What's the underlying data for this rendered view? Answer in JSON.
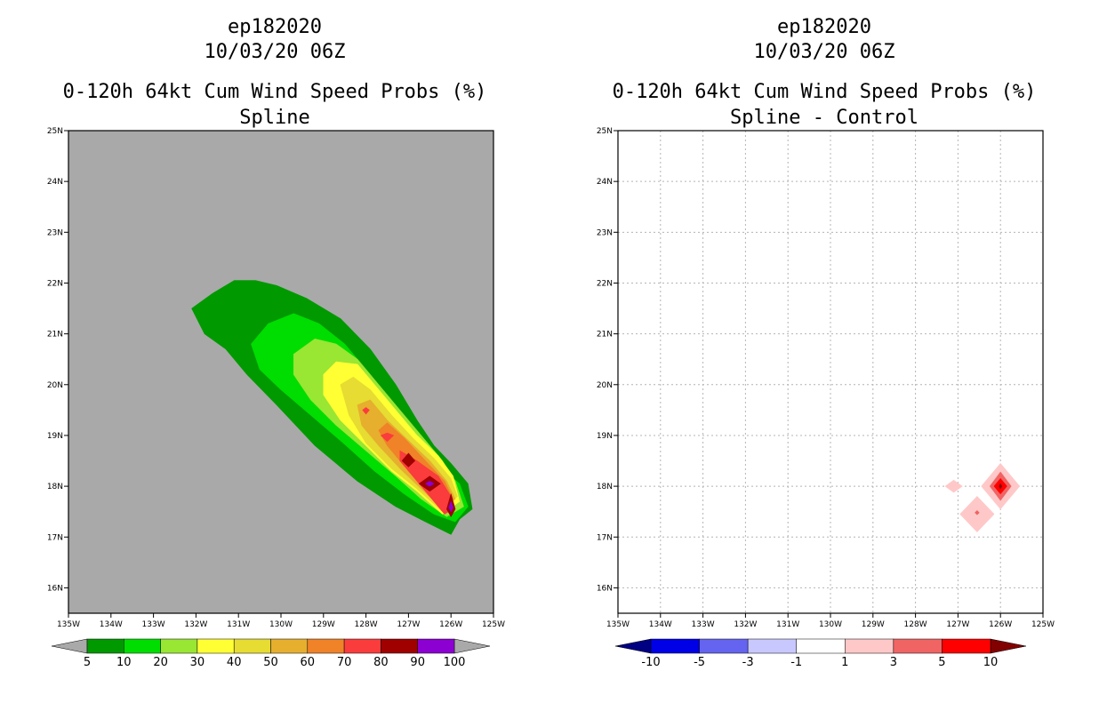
{
  "chart_data": [
    {
      "type": "heatmap",
      "id": "spline",
      "storm": "ep182020",
      "datetime": "10/03/20 06Z",
      "title": "0-120h 64kt Cum Wind Speed Probs (%)",
      "subtitle": "Spline",
      "xlim": [
        -135,
        -125
      ],
      "ylim": [
        15.5,
        25
      ],
      "xticks": [
        "135W",
        "134W",
        "133W",
        "132W",
        "131W",
        "130W",
        "129W",
        "128W",
        "127W",
        "126W",
        "125W"
      ],
      "yticks": [
        "16N",
        "17N",
        "18N",
        "19N",
        "20N",
        "21N",
        "22N",
        "23N",
        "24N",
        "25N"
      ],
      "grid": false,
      "background": "#a9a9a9",
      "colorbar": {
        "labels": [
          "5",
          "10",
          "20",
          "30",
          "40",
          "50",
          "60",
          "70",
          "80",
          "90",
          "100"
        ],
        "colors": [
          "#009900",
          "#00dd00",
          "#99e633",
          "#ffff33",
          "#e6dc32",
          "#e6af2d",
          "#f08228",
          "#fa3c3c",
          "#a00000",
          "#8c00d2"
        ],
        "under": "#a9a9a9",
        "over": "#a9a9a9"
      },
      "contours": [
        {
          "level": 5,
          "color": "#009900",
          "points": [
            [
              -132.1,
              21.5
            ],
            [
              -131.6,
              21.8
            ],
            [
              -131.1,
              22.05
            ],
            [
              -130.6,
              22.05
            ],
            [
              -130.1,
              21.95
            ],
            [
              -129.4,
              21.7
            ],
            [
              -128.6,
              21.3
            ],
            [
              -127.9,
              20.7
            ],
            [
              -127.3,
              20.0
            ],
            [
              -126.8,
              19.3
            ],
            [
              -126.4,
              18.8
            ],
            [
              -126.0,
              18.45
            ],
            [
              -125.6,
              18.05
            ],
            [
              -125.5,
              17.55
            ],
            [
              -125.8,
              17.35
            ],
            [
              -126.0,
              17.05
            ],
            [
              -126.6,
              17.3
            ],
            [
              -127.3,
              17.6
            ],
            [
              -128.2,
              18.1
            ],
            [
              -129.2,
              18.8
            ],
            [
              -130.1,
              19.6
            ],
            [
              -130.8,
              20.2
            ],
            [
              -131.3,
              20.7
            ],
            [
              -131.8,
              21.0
            ]
          ]
        },
        {
          "level": 10,
          "color": "#00dd00",
          "points": [
            [
              -130.7,
              20.8
            ],
            [
              -130.3,
              21.2
            ],
            [
              -129.7,
              21.4
            ],
            [
              -129.1,
              21.2
            ],
            [
              -128.5,
              20.8
            ],
            [
              -127.9,
              20.2
            ],
            [
              -127.3,
              19.5
            ],
            [
              -126.8,
              18.9
            ],
            [
              -126.3,
              18.4
            ],
            [
              -125.8,
              18.05
            ],
            [
              -125.6,
              17.6
            ],
            [
              -125.9,
              17.3
            ],
            [
              -126.4,
              17.45
            ],
            [
              -127.1,
              17.85
            ],
            [
              -127.8,
              18.3
            ],
            [
              -128.6,
              18.9
            ],
            [
              -129.3,
              19.4
            ],
            [
              -130.0,
              19.9
            ],
            [
              -130.5,
              20.3
            ]
          ]
        },
        {
          "level": 20,
          "color": "#99e633",
          "points": [
            [
              -129.7,
              20.6
            ],
            [
              -129.2,
              20.9
            ],
            [
              -128.7,
              20.8
            ],
            [
              -128.2,
              20.5
            ],
            [
              -127.7,
              20.0
            ],
            [
              -127.2,
              19.5
            ],
            [
              -126.7,
              19.0
            ],
            [
              -126.2,
              18.5
            ],
            [
              -125.9,
              18.1
            ],
            [
              -125.7,
              17.6
            ],
            [
              -126.1,
              17.4
            ],
            [
              -126.7,
              17.75
            ],
            [
              -127.3,
              18.2
            ],
            [
              -128.0,
              18.7
            ],
            [
              -128.7,
              19.2
            ],
            [
              -129.3,
              19.7
            ],
            [
              -129.7,
              20.2
            ]
          ]
        },
        {
          "level": 30,
          "color": "#ffff33",
          "points": [
            [
              -129.0,
              20.2
            ],
            [
              -128.7,
              20.45
            ],
            [
              -128.2,
              20.4
            ],
            [
              -127.8,
              20.0
            ],
            [
              -127.3,
              19.5
            ],
            [
              -126.8,
              19.0
            ],
            [
              -126.3,
              18.6
            ],
            [
              -125.95,
              18.2
            ],
            [
              -125.8,
              17.7
            ],
            [
              -126.2,
              17.45
            ],
            [
              -126.8,
              17.9
            ],
            [
              -127.4,
              18.3
            ],
            [
              -128.0,
              18.8
            ],
            [
              -128.6,
              19.3
            ],
            [
              -129.0,
              19.8
            ]
          ]
        },
        {
          "level": 40,
          "color": "#e6dc32",
          "points": [
            [
              -128.6,
              20.0
            ],
            [
              -128.3,
              20.15
            ],
            [
              -127.9,
              19.9
            ],
            [
              -127.4,
              19.4
            ],
            [
              -126.9,
              18.95
            ],
            [
              -126.4,
              18.55
            ],
            [
              -126.0,
              18.15
            ],
            [
              -125.85,
              17.8
            ],
            [
              -126.2,
              17.5
            ],
            [
              -126.8,
              17.95
            ],
            [
              -127.4,
              18.35
            ],
            [
              -128.0,
              18.85
            ],
            [
              -128.4,
              19.4
            ]
          ]
        },
        {
          "level": 50,
          "color": "#e6af2d",
          "points": [
            [
              -128.2,
              19.6
            ],
            [
              -127.9,
              19.7
            ],
            [
              -127.5,
              19.3
            ],
            [
              -127.0,
              18.9
            ],
            [
              -126.5,
              18.5
            ],
            [
              -126.1,
              18.1
            ],
            [
              -125.9,
              17.75
            ],
            [
              -126.2,
              17.55
            ],
            [
              -126.7,
              17.95
            ],
            [
              -127.2,
              18.35
            ],
            [
              -127.7,
              18.8
            ],
            [
              -128.1,
              19.2
            ]
          ]
        },
        {
          "level": 60,
          "color": "#f08228",
          "points": [
            [
              -127.7,
              19.1
            ],
            [
              -127.5,
              19.25
            ],
            [
              -127.1,
              18.95
            ],
            [
              -126.6,
              18.5
            ],
            [
              -126.15,
              18.1
            ],
            [
              -125.95,
              17.75
            ],
            [
              -126.2,
              17.6
            ],
            [
              -126.6,
              18.0
            ],
            [
              -127.1,
              18.4
            ],
            [
              -127.5,
              18.8
            ]
          ]
        },
        {
          "level": 70,
          "color": "#fa3c3c",
          "points": [
            [
              -127.2,
              18.7
            ],
            [
              -126.8,
              18.5
            ],
            [
              -126.3,
              18.2
            ],
            [
              -126.0,
              17.8
            ],
            [
              -125.95,
              17.55
            ],
            [
              -126.15,
              17.45
            ],
            [
              -126.5,
              17.8
            ],
            [
              -126.9,
              18.2
            ],
            [
              -127.2,
              18.5
            ]
          ]
        },
        {
          "level": 70,
          "color": "#fa3c3c",
          "points": [
            [
              -127.5,
              19.05
            ],
            [
              -127.35,
              19.0
            ],
            [
              -127.5,
              18.88
            ],
            [
              -127.65,
              19.0
            ]
          ]
        },
        {
          "level": 70,
          "color": "#fa3c3c",
          "points": [
            [
              -128.0,
              19.55
            ],
            [
              -127.92,
              19.5
            ],
            [
              -128.0,
              19.42
            ],
            [
              -128.08,
              19.5
            ]
          ]
        },
        {
          "level": 80,
          "color": "#a00000",
          "points": [
            [
              -127.0,
              18.65
            ],
            [
              -126.85,
              18.5
            ],
            [
              -127.0,
              18.38
            ],
            [
              -127.15,
              18.5
            ]
          ]
        },
        {
          "level": 80,
          "color": "#a00000",
          "points": [
            [
              -126.5,
              18.2
            ],
            [
              -126.25,
              18.05
            ],
            [
              -126.5,
              17.9
            ],
            [
              -126.75,
              18.05
            ]
          ]
        },
        {
          "level": 80,
          "color": "#a00000",
          "points": [
            [
              -126.0,
              17.85
            ],
            [
              -125.9,
              17.55
            ],
            [
              -126.0,
              17.4
            ],
            [
              -126.1,
              17.55
            ]
          ]
        },
        {
          "level": 90,
          "color": "#8c00d2",
          "points": [
            [
              -126.5,
              18.1
            ],
            [
              -126.4,
              18.05
            ],
            [
              -126.5,
              18.0
            ],
            [
              -126.6,
              18.05
            ]
          ]
        },
        {
          "level": 90,
          "color": "#8c00d2",
          "points": [
            [
              -126.0,
              17.7
            ],
            [
              -125.95,
              17.58
            ],
            [
              -126.0,
              17.5
            ],
            [
              -126.05,
              17.58
            ]
          ]
        }
      ]
    },
    {
      "type": "heatmap",
      "id": "difference",
      "storm": "ep182020",
      "datetime": "10/03/20 06Z",
      "title": "0-120h 64kt Cum Wind Speed Probs (%)",
      "subtitle": "Spline - Control",
      "xlim": [
        -135,
        -125
      ],
      "ylim": [
        15.5,
        25
      ],
      "xticks": [
        "135W",
        "134W",
        "133W",
        "132W",
        "131W",
        "130W",
        "129W",
        "128W",
        "127W",
        "126W",
        "125W"
      ],
      "yticks": [
        "16N",
        "17N",
        "18N",
        "19N",
        "20N",
        "21N",
        "22N",
        "23N",
        "24N",
        "25N"
      ],
      "grid": true,
      "background": "#ffffff",
      "colorbar": {
        "labels": [
          "-10",
          "-5",
          "-3",
          "-1",
          "1",
          "3",
          "5",
          "10"
        ],
        "colors": [
          "#0000e6",
          "#6464f0",
          "#c8c8ff",
          "#ffffff",
          "#ffc8c8",
          "#f06464",
          "#ff0000"
        ],
        "under": "#000082",
        "over": "#820000"
      },
      "contours": [
        {
          "level": 1,
          "color": "#ffc8c8",
          "points": [
            [
              -126.0,
              18.45
            ],
            [
              -125.55,
              18.0
            ],
            [
              -126.0,
              17.55
            ],
            [
              -126.45,
              18.0
            ]
          ]
        },
        {
          "level": 1,
          "color": "#ffc8c8",
          "points": [
            [
              -126.55,
              17.8
            ],
            [
              -126.15,
              17.45
            ],
            [
              -126.55,
              17.1
            ],
            [
              -126.95,
              17.45
            ]
          ]
        },
        {
          "level": 1,
          "color": "#ffc8c8",
          "points": [
            [
              -127.1,
              18.12
            ],
            [
              -126.9,
              18.0
            ],
            [
              -127.1,
              17.88
            ],
            [
              -127.3,
              18.0
            ]
          ]
        },
        {
          "level": 3,
          "color": "#f06464",
          "points": [
            [
              -126.0,
              18.28
            ],
            [
              -125.75,
              18.0
            ],
            [
              -126.0,
              17.72
            ],
            [
              -126.25,
              18.0
            ]
          ]
        },
        {
          "level": 3,
          "color": "#f06464",
          "points": [
            [
              -126.55,
              17.52
            ],
            [
              -126.5,
              17.48
            ],
            [
              -126.55,
              17.44
            ],
            [
              -126.6,
              17.48
            ]
          ]
        },
        {
          "level": 5,
          "color": "#ff0000",
          "points": [
            [
              -126.0,
              18.15
            ],
            [
              -125.85,
              18.0
            ],
            [
              -126.0,
              17.85
            ],
            [
              -126.15,
              18.0
            ]
          ]
        },
        {
          "level": 10,
          "color": "#820000",
          "points": [
            [
              -126.0,
              18.05
            ],
            [
              -125.97,
              18.0
            ],
            [
              -126.0,
              17.95
            ],
            [
              -126.03,
              18.0
            ]
          ]
        }
      ]
    }
  ]
}
